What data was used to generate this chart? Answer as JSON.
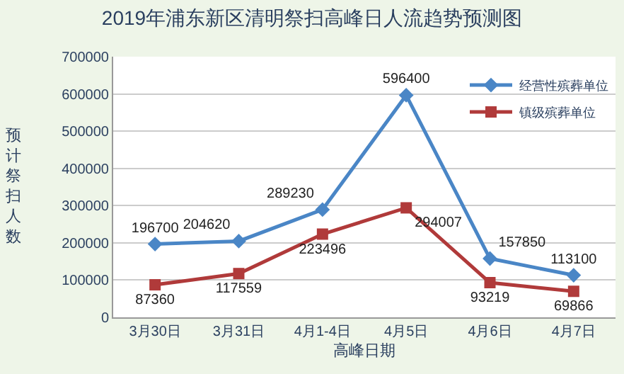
{
  "chart_data": {
    "type": "line",
    "title": "2019年浦东新区清明祭扫高峰日人流趋势预测图",
    "xlabel": "高峰日期",
    "ylabel": "预计祭扫人数",
    "categories": [
      "3月30日",
      "3月31日",
      "4月1-4日",
      "4月5日",
      "4月6日",
      "4月7日"
    ],
    "series": [
      {
        "name": "经营性殡葬单位",
        "color": "#4a86c6",
        "marker": "diamond",
        "values": [
          196700,
          204620,
          289230,
          596400,
          157850,
          113100
        ]
      },
      {
        "name": "镇级殡葬单位",
        "color": "#b03a3a",
        "marker": "square",
        "values": [
          87360,
          117559,
          223496,
          294007,
          93219,
          69866
        ]
      }
    ],
    "ylim": [
      0,
      700000
    ],
    "yticks": [
      0,
      100000,
      200000,
      300000,
      400000,
      500000,
      600000,
      700000
    ],
    "grid": "y",
    "legend": "top right",
    "data_labels": true
  }
}
